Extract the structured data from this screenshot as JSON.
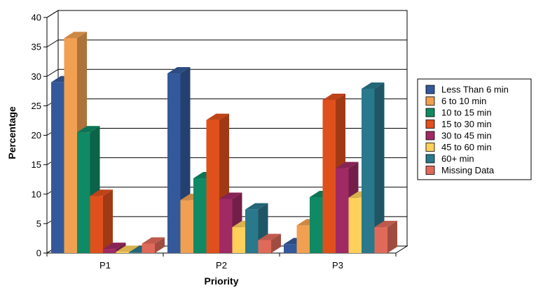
{
  "chart_data": {
    "type": "bar",
    "title": "",
    "xlabel": "Priority",
    "ylabel": "Percentage",
    "ylim": [
      0,
      40
    ],
    "yticks": [
      0,
      5,
      10,
      15,
      20,
      25,
      30,
      35,
      40
    ],
    "grid": true,
    "legend_position": "right",
    "style": "3d-clustered",
    "categories": [
      "P1",
      "P2",
      "P3"
    ],
    "series": [
      {
        "name": "Less Than 6 min",
        "color": "#34599a",
        "values": [
          29.0,
          30.5,
          1.5
        ]
      },
      {
        "name": "6 to 10 min",
        "color": "#f0a050",
        "values": [
          36.5,
          9.0,
          4.7
        ]
      },
      {
        "name": "10 to 15 min",
        "color": "#0f8a64",
        "values": [
          20.5,
          12.7,
          9.5
        ]
      },
      {
        "name": "15 to 30 min",
        "color": "#e0501c",
        "values": [
          9.7,
          22.6,
          26.0
        ]
      },
      {
        "name": "30 to 45 min",
        "color": "#a02a64",
        "values": [
          0.7,
          9.2,
          14.4
        ]
      },
      {
        "name": "45 to 60 min",
        "color": "#ffd05a",
        "values": [
          0.2,
          4.4,
          9.4
        ]
      },
      {
        "name": "60+ min",
        "color": "#2a788c",
        "values": [
          0.1,
          7.4,
          27.9
        ]
      },
      {
        "name": "Missing Data",
        "color": "#e06a5a",
        "values": [
          1.6,
          2.2,
          4.4
        ]
      }
    ]
  }
}
